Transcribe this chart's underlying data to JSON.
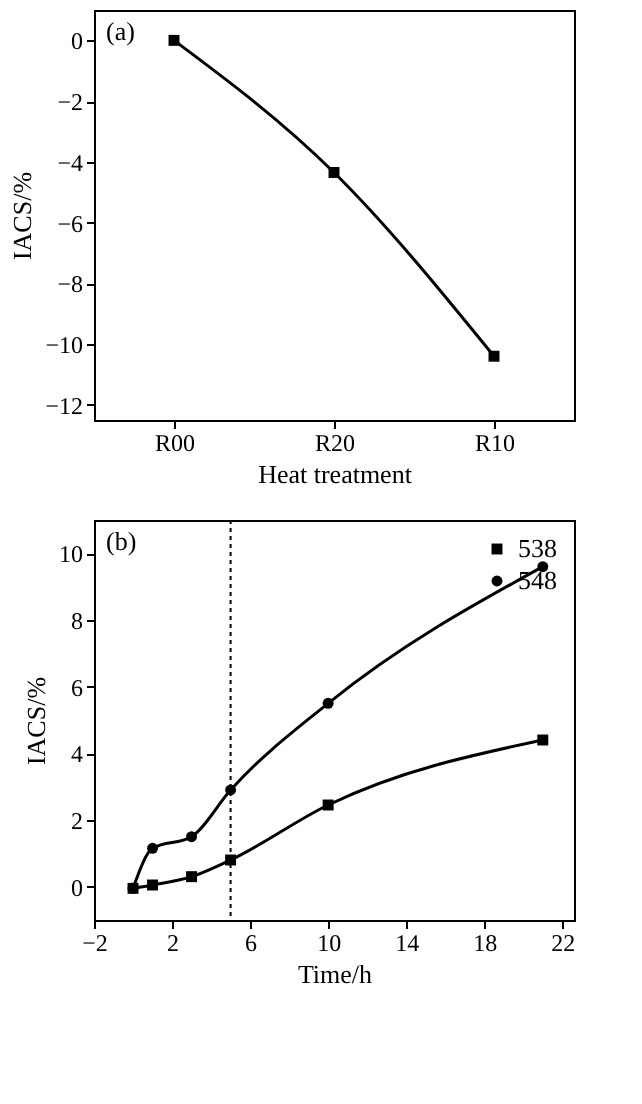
{
  "chart_data": [
    {
      "type": "line",
      "annotations": [
        "(a)"
      ],
      "xlabel": "Heat treatment",
      "ylabel": "IACS/%",
      "categories": [
        "R00",
        "R20",
        "R10"
      ],
      "series": [
        {
          "color": "#000000",
          "values": [
            0,
            -4.35,
            -10.4
          ]
        }
      ],
      "marker": "square",
      "ylim": [
        -12.5,
        1
      ],
      "yticks": [
        -12,
        -10,
        -8,
        -6,
        -4,
        -2,
        0
      ]
    },
    {
      "type": "line",
      "annotations": [
        "(b)"
      ],
      "xlabel": "Time/h",
      "ylabel": "IACS/%",
      "x": [
        0,
        1,
        3,
        5,
        10,
        21
      ],
      "series": [
        {
          "name": "538",
          "color": "#000000",
          "marker": "square",
          "values": [
            -0.05,
            0.05,
            0.3,
            0.8,
            2.45,
            4.4
          ]
        },
        {
          "name": "548",
          "color": "#000000",
          "marker": "circle",
          "values": [
            -0.05,
            1.15,
            1.5,
            2.9,
            5.5,
            9.6
          ]
        }
      ],
      "xlim": [
        -2,
        22.6
      ],
      "xticks": [
        -2,
        2,
        6,
        10,
        14,
        18,
        22
      ],
      "ylim": [
        -1,
        11
      ],
      "yticks": [
        0,
        2,
        4,
        6,
        8,
        10
      ],
      "legend": "top right",
      "ref_lines": [
        {
          "axis": "x",
          "value": 5,
          "line_style": "dotted"
        }
      ]
    }
  ]
}
